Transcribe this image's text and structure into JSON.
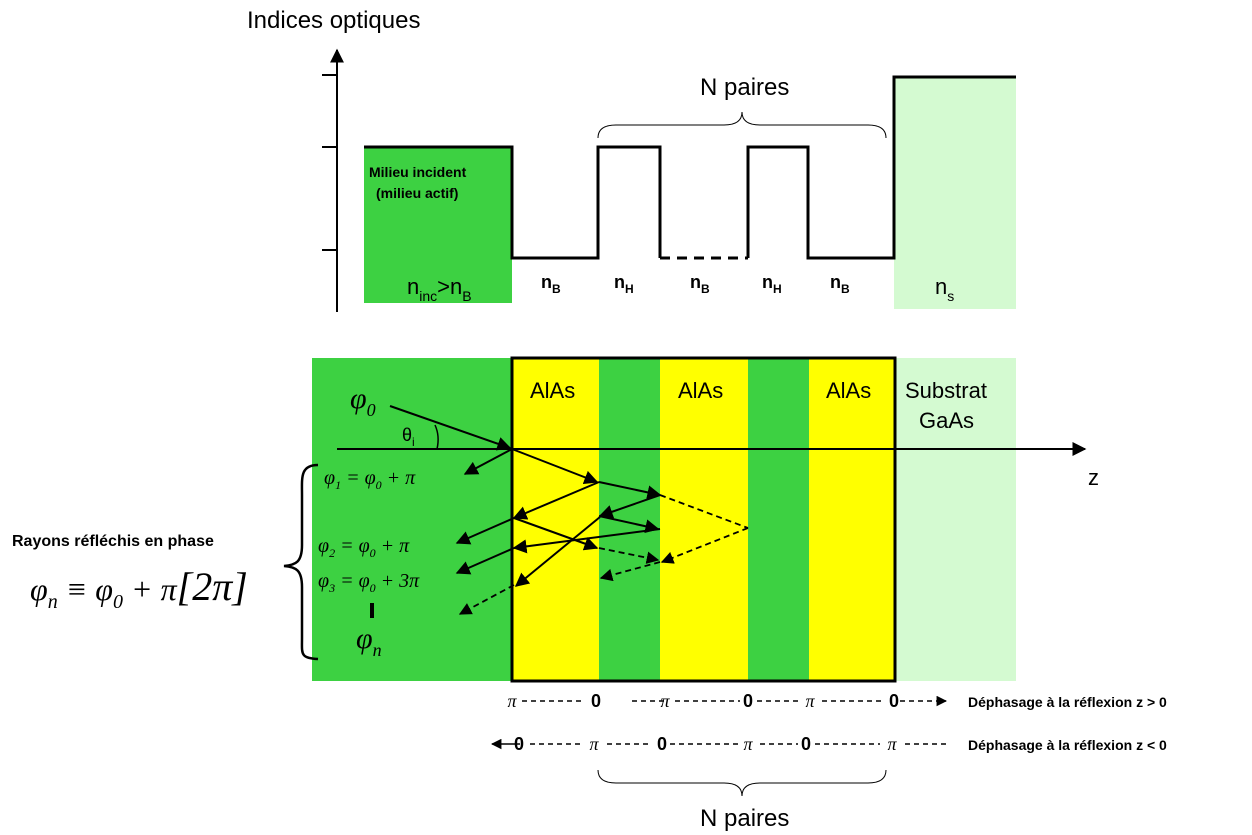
{
  "colors": {
    "green": "#3dd142",
    "yellow": "#ffff00",
    "light_green": "#d4fad1",
    "black": "#000000"
  },
  "top": {
    "title": "Indices optiques",
    "n_paires": "N paires",
    "milieu_line1": "Milieu incident",
    "milieu_line2": "(milieu actif)",
    "layers": [
      {
        "main": "n",
        "sub": "inc",
        "rest": ">n",
        "sub2": "B"
      },
      {
        "main": "n",
        "sub": "B"
      },
      {
        "main": "n",
        "sub": "H"
      },
      {
        "main": "n",
        "sub": "B"
      },
      {
        "main": "n",
        "sub": "H"
      },
      {
        "main": "n",
        "sub": "B"
      },
      {
        "main": "n",
        "sub": "s"
      }
    ]
  },
  "bottom": {
    "alas": "AlAs",
    "substrat_line1": "Substrat",
    "substrat_line2": "GaAs",
    "theta": "θ",
    "theta_sub": "i",
    "z_label": "z",
    "phi0": "φ",
    "phi0_sub": "0",
    "phi1": {
      "lhs": "φ",
      "lhs_sub": "1",
      "rhs": " = φ",
      "rhs_sub": "0",
      "tail": " + π"
    },
    "phi2": {
      "lhs": "φ",
      "lhs_sub": "2",
      "rhs": " = φ",
      "rhs_sub": "0",
      "tail": " + π"
    },
    "phi3": {
      "lhs": "φ",
      "lhs_sub": "3",
      "rhs": " = φ",
      "rhs_sub": "0",
      "tail": " + 3π"
    },
    "phin": "φ",
    "phin_sub": "n",
    "rayons": "Rayons réfléchis en phase",
    "big_formula": {
      "lhs": "φ",
      "lhs_sub": "n",
      "eq": " ≡ φ",
      "eq_sub": "0",
      "tail": " + π",
      "bracket": "[2π]"
    },
    "phase_pos_label": "Déphasage à la réflexion z > 0",
    "phase_neg_label": "Déphasage à la réflexion z < 0",
    "phase_pos": [
      "π",
      "0",
      "π",
      "0",
      "π",
      "0"
    ],
    "phase_neg": [
      "0",
      "π",
      "0",
      "π",
      "0",
      "π"
    ],
    "n_paires_bottom": "N paires"
  }
}
